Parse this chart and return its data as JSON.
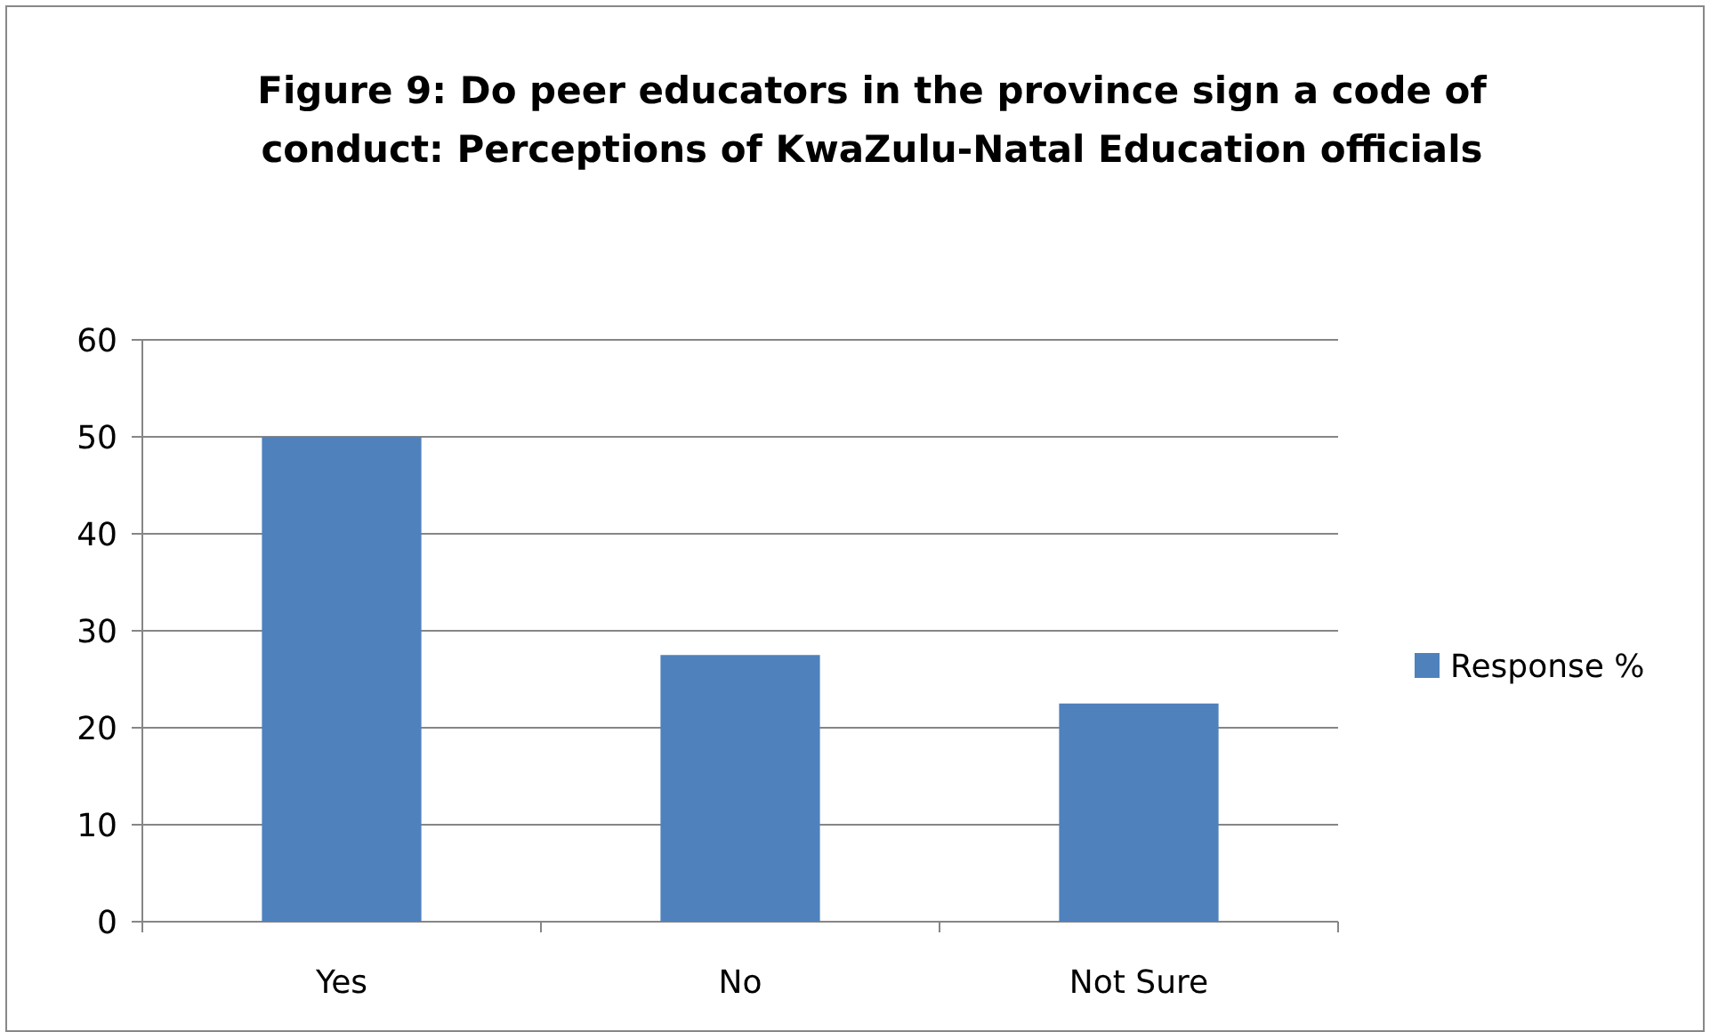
{
  "chart_data": {
    "type": "bar",
    "title": "Figure 9: Do peer educators in the province sign a code of conduct: Perceptions of KwaZulu-Natal Education officials",
    "categories": [
      "Yes",
      "No",
      "Not Sure"
    ],
    "series": [
      {
        "name": "Response %",
        "color": "#4f81bd",
        "values": [
          50,
          27.5,
          22.5
        ]
      }
    ],
    "ylim": [
      0,
      60
    ],
    "yticks": [
      0,
      10,
      20,
      30,
      40,
      50,
      60
    ],
    "grid": "y",
    "legend": "right"
  }
}
